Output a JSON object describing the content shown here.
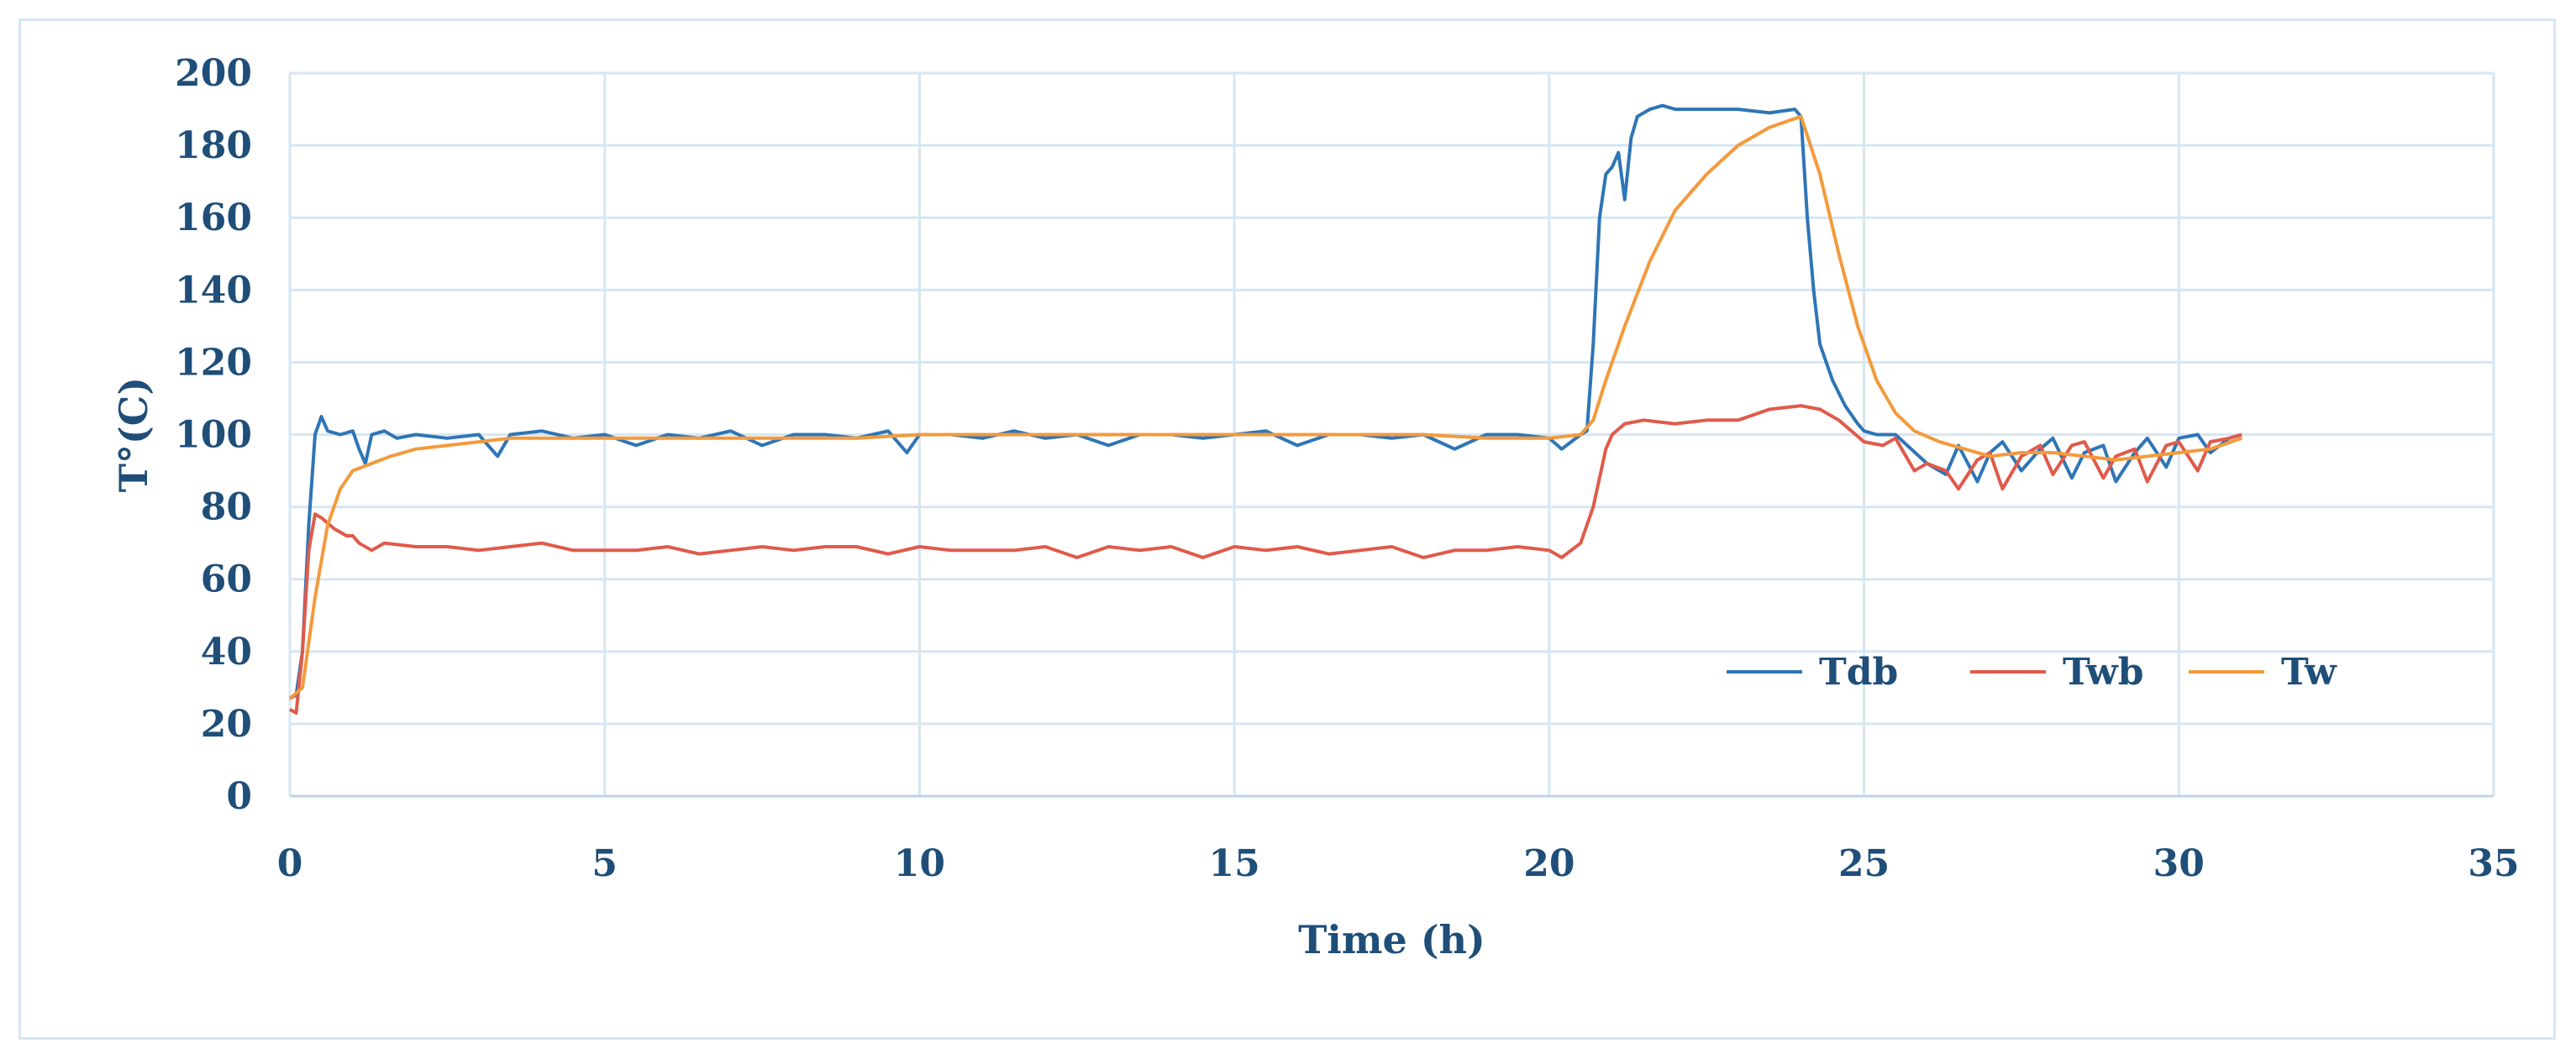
{
  "chart_data": {
    "type": "line",
    "title": "",
    "xlabel": "Time (h)",
    "ylabel": "T°(C)",
    "xlim": [
      0,
      35
    ],
    "ylim": [
      0,
      200
    ],
    "xticks": [
      0,
      5,
      10,
      15,
      20,
      25,
      30,
      35
    ],
    "yticks": [
      0,
      20,
      40,
      60,
      80,
      100,
      120,
      140,
      160,
      180,
      200
    ],
    "grid": true,
    "legend_position": "lower-right",
    "series": [
      {
        "name": "Tdb",
        "color": "#2e75b6",
        "x": [
          0,
          0.1,
          0.2,
          0.3,
          0.4,
          0.5,
          0.6,
          0.8,
          1.0,
          1.1,
          1.2,
          1.3,
          1.5,
          1.7,
          2.0,
          2.5,
          3.0,
          3.3,
          3.5,
          4.0,
          4.5,
          5.0,
          5.5,
          6.0,
          6.5,
          7.0,
          7.5,
          8.0,
          8.5,
          9.0,
          9.5,
          9.8,
          10.0,
          10.5,
          11.0,
          11.5,
          12.0,
          12.5,
          13.0,
          13.5,
          14.0,
          14.5,
          15.0,
          15.5,
          16.0,
          16.5,
          17.0,
          17.5,
          18.0,
          18.5,
          19.0,
          19.5,
          20.0,
          20.2,
          20.5,
          20.6,
          20.7,
          20.8,
          20.9,
          21.0,
          21.1,
          21.2,
          21.3,
          21.4,
          21.6,
          21.8,
          22.0,
          22.5,
          23.0,
          23.5,
          23.9,
          24.0,
          24.1,
          24.2,
          24.3,
          24.5,
          24.7,
          24.9,
          25.0,
          25.2,
          25.5,
          26.0,
          26.3,
          26.5,
          26.8,
          27.0,
          27.2,
          27.5,
          27.8,
          28.0,
          28.3,
          28.5,
          28.8,
          29.0,
          29.3,
          29.5,
          29.8,
          30.0,
          30.3,
          30.5,
          30.8,
          31.0
        ],
        "y": [
          27,
          28,
          40,
          75,
          100,
          105,
          101,
          100,
          101,
          96,
          92,
          100,
          101,
          99,
          100,
          99,
          100,
          94,
          100,
          101,
          99,
          100,
          97,
          100,
          99,
          101,
          97,
          100,
          100,
          99,
          101,
          95,
          100,
          100,
          99,
          101,
          99,
          100,
          97,
          100,
          100,
          99,
          100,
          101,
          97,
          100,
          100,
          99,
          100,
          96,
          100,
          100,
          99,
          96,
          100,
          101,
          125,
          160,
          172,
          174,
          178,
          165,
          182,
          188,
          190,
          191,
          190,
          190,
          190,
          189,
          190,
          188,
          160,
          140,
          125,
          115,
          108,
          103,
          101,
          100,
          100,
          92,
          89,
          97,
          87,
          95,
          98,
          90,
          96,
          99,
          88,
          95,
          97,
          87,
          95,
          99,
          91,
          99,
          100,
          95,
          99,
          100
        ]
      },
      {
        "name": "Twb",
        "color": "#e05a4a",
        "x": [
          0,
          0.1,
          0.2,
          0.3,
          0.4,
          0.5,
          0.7,
          0.9,
          1.0,
          1.1,
          1.3,
          1.5,
          2.0,
          2.5,
          3.0,
          3.5,
          4.0,
          4.5,
          5.0,
          5.5,
          6.0,
          6.5,
          7.0,
          7.5,
          8.0,
          8.5,
          9.0,
          9.5,
          10.0,
          10.5,
          11.0,
          11.5,
          12.0,
          12.5,
          13.0,
          13.5,
          14.0,
          14.5,
          15.0,
          15.5,
          16.0,
          16.5,
          17.0,
          17.5,
          18.0,
          18.5,
          19.0,
          19.5,
          20.0,
          20.2,
          20.5,
          20.7,
          20.9,
          21.0,
          21.2,
          21.5,
          22.0,
          22.5,
          23.0,
          23.5,
          24.0,
          24.3,
          24.6,
          25.0,
          25.3,
          25.5,
          25.8,
          26.0,
          26.3,
          26.5,
          26.8,
          27.0,
          27.2,
          27.5,
          27.8,
          28.0,
          28.3,
          28.5,
          28.8,
          29.0,
          29.3,
          29.5,
          29.8,
          30.0,
          30.3,
          30.5,
          30.8,
          31.0
        ],
        "y": [
          24,
          23,
          40,
          68,
          78,
          77,
          74,
          72,
          72,
          70,
          68,
          70,
          69,
          69,
          68,
          69,
          70,
          68,
          68,
          68,
          69,
          67,
          68,
          69,
          68,
          69,
          69,
          67,
          69,
          68,
          68,
          68,
          69,
          66,
          69,
          68,
          69,
          66,
          69,
          68,
          69,
          67,
          68,
          69,
          66,
          68,
          68,
          69,
          68,
          66,
          70,
          80,
          96,
          100,
          103,
          104,
          103,
          104,
          104,
          107,
          108,
          107,
          104,
          98,
          97,
          99,
          90,
          92,
          90,
          85,
          93,
          95,
          85,
          94,
          97,
          89,
          97,
          98,
          88,
          94,
          96,
          87,
          97,
          98,
          90,
          98,
          99,
          100
        ]
      },
      {
        "name": "Tw",
        "color": "#f39a3c",
        "x": [
          0,
          0.2,
          0.4,
          0.6,
          0.8,
          1.0,
          1.3,
          1.6,
          2.0,
          2.5,
          3.0,
          3.5,
          4.0,
          5.0,
          6.0,
          7.0,
          8.0,
          9.0,
          10.0,
          11.0,
          12.0,
          13.0,
          14.0,
          15.0,
          16.0,
          17.0,
          18.0,
          19.0,
          20.0,
          20.5,
          20.7,
          20.9,
          21.2,
          21.6,
          22.0,
          22.5,
          23.0,
          23.5,
          24.0,
          24.3,
          24.6,
          24.9,
          25.2,
          25.5,
          25.8,
          26.2,
          26.6,
          27.0,
          27.5,
          28.0,
          28.5,
          29.0,
          29.5,
          30.0,
          30.5,
          31.0
        ],
        "y": [
          27,
          30,
          55,
          75,
          85,
          90,
          92,
          94,
          96,
          97,
          98,
          99,
          99,
          99,
          99,
          99,
          99,
          99,
          100,
          100,
          100,
          100,
          100,
          100,
          100,
          100,
          100,
          99,
          99,
          100,
          104,
          115,
          130,
          148,
          162,
          172,
          180,
          185,
          188,
          172,
          150,
          130,
          115,
          106,
          101,
          98,
          96,
          94,
          95,
          95,
          94,
          93,
          94,
          95,
          96,
          99
        ]
      }
    ]
  }
}
